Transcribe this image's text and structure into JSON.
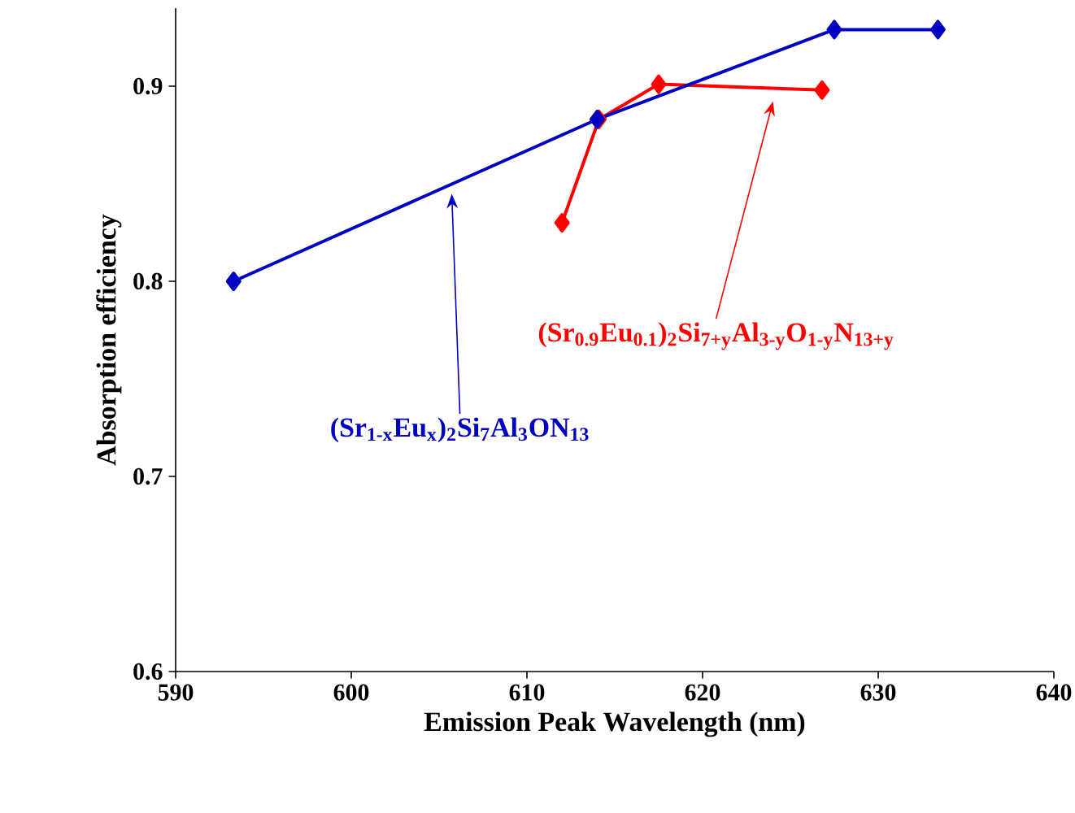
{
  "chart_data": {
    "type": "line",
    "xlabel": "Emission Peak Wavelength (nm)",
    "ylabel": "Absorption efficiency",
    "xlim": [
      590,
      640
    ],
    "ylim": [
      0.6,
      0.94
    ],
    "xticks": [
      590,
      600,
      610,
      620,
      630,
      640
    ],
    "yticks": [
      0.6,
      0.7,
      0.8,
      0.9
    ],
    "marker": "diamond",
    "line_style": "solid",
    "series": [
      {
        "color": "#0000c0",
        "x": [
          593.3,
          614.0,
          627.5,
          633.4
        ],
        "values": [
          0.8,
          0.883,
          0.929,
          0.929
        ]
      },
      {
        "color": "#ff0000",
        "x": [
          612.0,
          614.1,
          617.5,
          626.8
        ],
        "values": [
          0.83,
          0.883,
          0.901,
          0.898
        ]
      }
    ],
    "annotations": [
      "(Sr$_{1-x}$Eu$_{x}$)$_{2}$Si$_{7}$Al$_{3}$ON$_{13}$",
      "(Sr$_{0.9}$Eu$_{0.1}$)$_{2}$Si$_{7+y}$Al$_{3-y}$O$_{1-y}$N$_{13+y}$"
    ]
  }
}
